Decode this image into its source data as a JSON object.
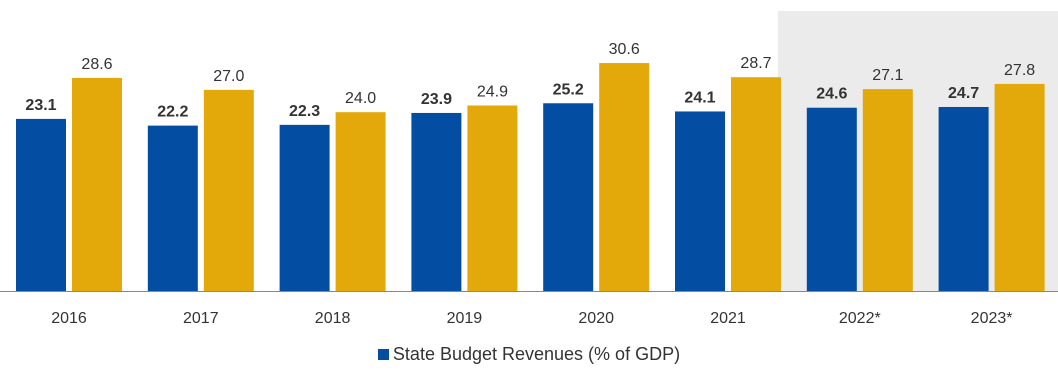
{
  "chart_data": {
    "type": "bar",
    "categories": [
      "2016",
      "2017",
      "2018",
      "2019",
      "2020",
      "2021",
      "2022*",
      "2023*"
    ],
    "series": [
      {
        "name": "State Budget Revenues (% of GDP)",
        "values": [
          23.1,
          22.2,
          22.3,
          23.9,
          25.2,
          24.1,
          24.6,
          24.7
        ],
        "color": "#034ea2",
        "label_bold": true
      },
      {
        "name": "",
        "values": [
          28.6,
          27.0,
          24.0,
          24.9,
          30.6,
          28.7,
          27.1,
          27.8
        ],
        "color": "#e3a90a",
        "label_bold": false
      }
    ],
    "forecast_categories": [
      "2022*",
      "2023*"
    ],
    "forecast_shading_color": "#ebebeb",
    "ylim": [
      0,
      32
    ],
    "grid": false,
    "legend_position": "bottom-center",
    "title": "",
    "xlabel": "",
    "ylabel": ""
  },
  "legend": {
    "label": "State Budget Revenues (% of GDP)",
    "color": "#034ea2"
  }
}
